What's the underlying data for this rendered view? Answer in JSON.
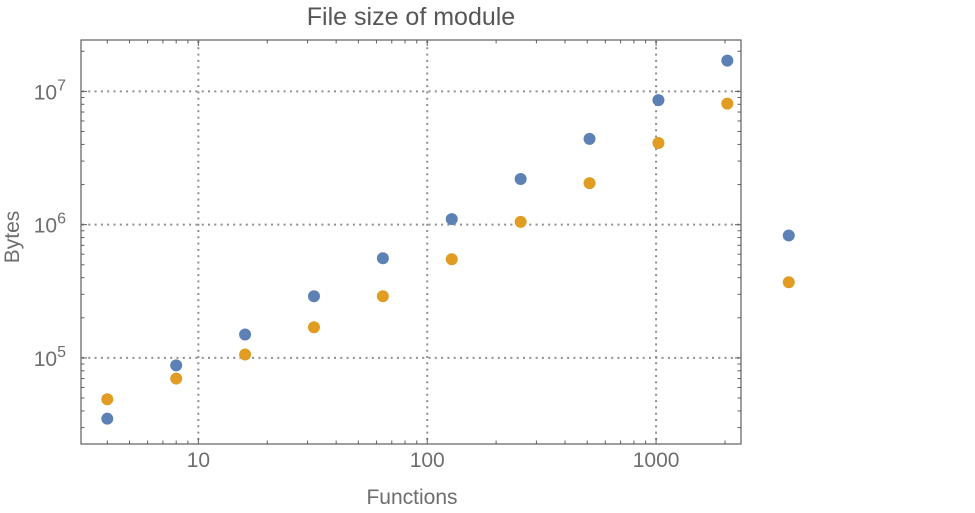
{
  "colors": {
    "background": "#ffffff",
    "title": "#565656",
    "axis_labels": "#6e6e6e",
    "tick_labels": "#6e6e6e",
    "frame": "#5f5f5f",
    "grid": "#8f8f8f",
    "series_blue": "#5E81B5",
    "series_orange": "#E19C24"
  },
  "chart_data": {
    "type": "scatter",
    "title": "File size of module",
    "xlabel": "Functions",
    "ylabel": "Bytes",
    "x_scale": "log",
    "y_scale": "log",
    "grid": "dotted",
    "legend_position": "none",
    "xlim": [
      3.07,
      2350
    ],
    "ylim": [
      22600,
      24300000
    ],
    "x_ticks": [
      10,
      100,
      1000
    ],
    "x_tick_labels": [
      "10",
      "100",
      "1000"
    ],
    "y_ticks": [
      100000,
      1000000,
      10000000
    ],
    "y_tick_labels": [
      {
        "base": "10",
        "exp": "5"
      },
      {
        "base": "10",
        "exp": "6"
      },
      {
        "base": "10",
        "exp": "7"
      }
    ],
    "x": [
      4,
      8,
      16,
      32,
      64,
      128,
      256,
      512,
      1024,
      2048,
      3800
    ],
    "series": [
      {
        "name": "blue",
        "color": "#5E81B5",
        "values": [
          35000,
          88000,
          150000,
          290000,
          560000,
          1100000,
          2200000,
          4400000,
          8600000,
          17000000,
          830000
        ]
      },
      {
        "name": "orange",
        "color": "#E19C24",
        "values": [
          49000,
          70000,
          106000,
          170000,
          290000,
          550000,
          1050000,
          2050000,
          4100000,
          8100000,
          370000
        ]
      }
    ]
  }
}
